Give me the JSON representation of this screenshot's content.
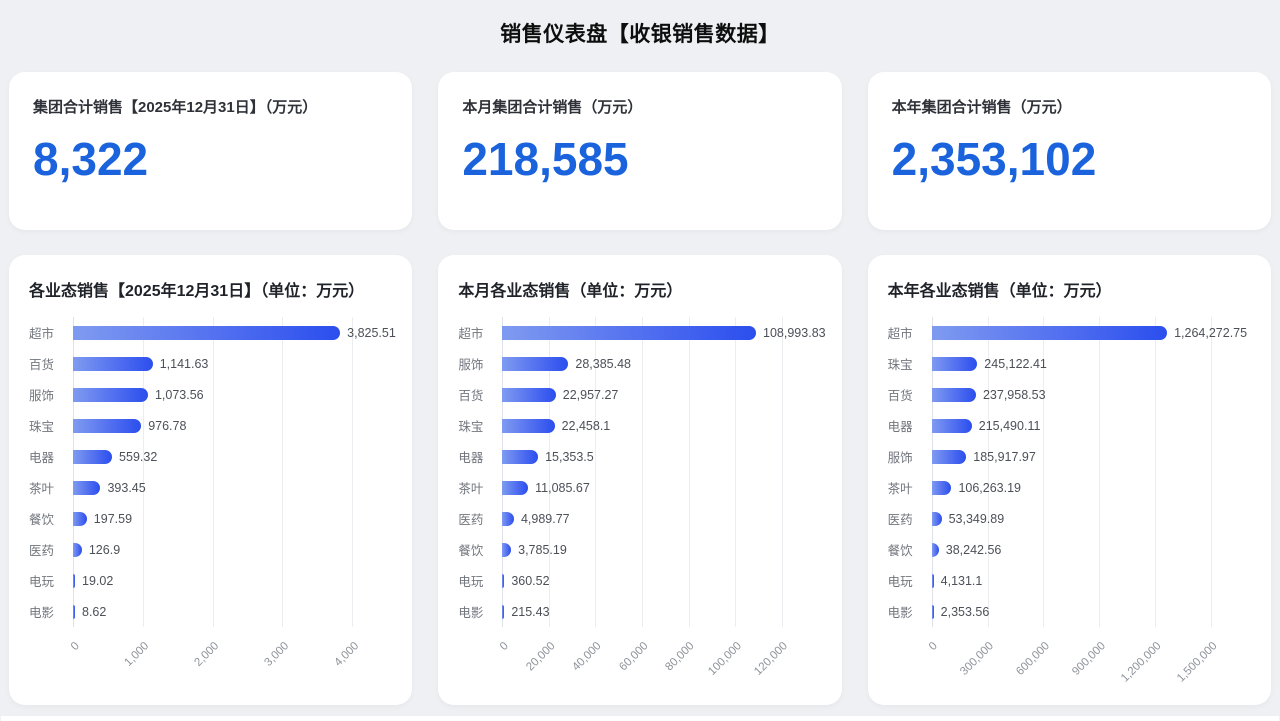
{
  "page_title": "销售仪表盘【收银销售数据】",
  "unit_note": "万元",
  "colors": {
    "page_background": "#eef0f3",
    "card_background": "#ffffff",
    "kpi_value_blue": "#1a63dd",
    "bar_gradient_start": "#7f9bf0",
    "bar_gradient_end": "#2b4eee",
    "gridline": "#ebedf1",
    "category_label": "#71767e",
    "value_label": "#4c5058",
    "tick_label": "#8e939b"
  },
  "kpi_cards": [
    {
      "label": "集团合计销售【2025年12月31日】（万元）",
      "value": "8,322"
    },
    {
      "label": "本月集团合计销售（万元）",
      "value": "218,585"
    },
    {
      "label": "本年集团合计销售（万元）",
      "value": "2,353,102"
    }
  ],
  "chart_data": [
    {
      "type": "bar",
      "orientation": "horizontal",
      "title": "各业态销售【2025年12月31日】（单位：万元）",
      "categories": [
        "超市",
        "百货",
        "服饰",
        "珠宝",
        "电器",
        "茶叶",
        "餐饮",
        "医药",
        "电玩",
        "电影"
      ],
      "values": [
        3825.51,
        1141.63,
        1073.56,
        976.78,
        559.32,
        393.45,
        197.59,
        126.9,
        19.02,
        8.62
      ],
      "value_labels": [
        "3,825.51",
        "1,141.63",
        "1,073.56",
        "976.78",
        "559.32",
        "393.45",
        "197.59",
        "126.9",
        "19.02",
        "8.62"
      ],
      "xlim": [
        0,
        4000
      ],
      "x_ticks": [
        "0",
        "1,000",
        "2,000",
        "3,000",
        "4,000"
      ],
      "grid": true,
      "legend": "none"
    },
    {
      "type": "bar",
      "orientation": "horizontal",
      "title": "本月各业态销售（单位：万元）",
      "categories": [
        "超市",
        "服饰",
        "百货",
        "珠宝",
        "电器",
        "茶叶",
        "医药",
        "餐饮",
        "电玩",
        "电影"
      ],
      "values": [
        108993.83,
        28385.48,
        22957.27,
        22458.1,
        15353.5,
        11085.67,
        4989.77,
        3785.19,
        360.52,
        215.43
      ],
      "value_labels": [
        "108,993.83",
        "28,385.48",
        "22,957.27",
        "22,458.1",
        "15,353.5",
        "11,085.67",
        "4,989.77",
        "3,785.19",
        "360.52",
        "215.43"
      ],
      "xlim": [
        0,
        120000
      ],
      "x_ticks": [
        "0",
        "20,000",
        "40,000",
        "60,000",
        "80,000",
        "100,000",
        "120,000"
      ],
      "grid": true,
      "legend": "none"
    },
    {
      "type": "bar",
      "orientation": "horizontal",
      "title": "本年各业态销售（单位：万元）",
      "categories": [
        "超市",
        "珠宝",
        "百货",
        "电器",
        "服饰",
        "茶叶",
        "医药",
        "餐饮",
        "电玩",
        "电影"
      ],
      "values": [
        1264272.75,
        245122.41,
        237958.53,
        215490.11,
        185917.97,
        106263.19,
        53349.89,
        38242.56,
        4131.1,
        2353.56
      ],
      "value_labels": [
        "1,264,272.75",
        "245,122.41",
        "237,958.53",
        "215,490.11",
        "185,917.97",
        "106,263.19",
        "53,349.89",
        "38,242.56",
        "4,131.1",
        "2,353.56"
      ],
      "xlim": [
        0,
        1500000
      ],
      "x_ticks": [
        "0",
        "300,000",
        "600,000",
        "900,000",
        "1,200,000",
        "1,500,000"
      ],
      "grid": true,
      "legend": "none"
    }
  ]
}
